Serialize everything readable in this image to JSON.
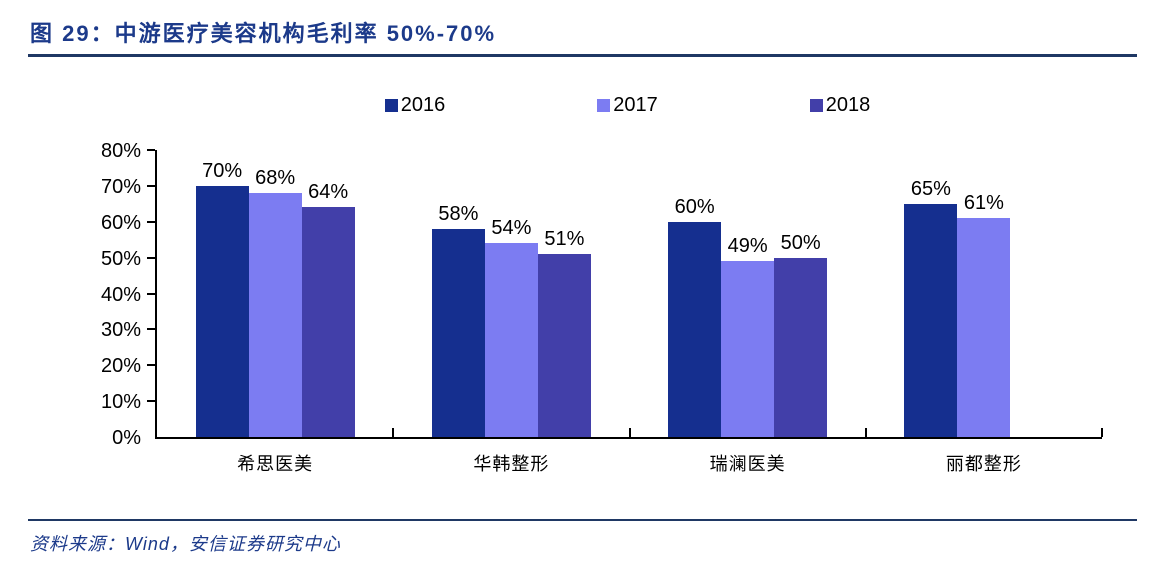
{
  "figure": {
    "title": "图 29：中游医疗美容机构毛利率 50%-70%",
    "source": "资料来源：Wind，安信证券研究中心"
  },
  "colors": {
    "title_navy": "#1C3A8A",
    "rule_navy": "#1F3864",
    "axis_black": "#000000",
    "series_2016": "#152F8F",
    "series_2017": "#7C7CF2",
    "series_2018": "#423FA9"
  },
  "chart_data": {
    "type": "bar",
    "title": "中游医疗美容机构毛利率 50%-70%",
    "categories": [
      "希思医美",
      "华韩整形",
      "瑞澜医美",
      "丽都整形"
    ],
    "series": [
      {
        "name": "2016",
        "color": "#152F8F",
        "values": [
          70,
          58,
          60,
          65
        ]
      },
      {
        "name": "2017",
        "color": "#7C7CF2",
        "values": [
          68,
          54,
          49,
          61
        ]
      },
      {
        "name": "2018",
        "color": "#423FA9",
        "values": [
          64,
          51,
          50,
          null
        ]
      }
    ],
    "value_label_suffix": "%",
    "xlabel": "",
    "ylabel": "",
    "ylim": [
      0,
      80
    ],
    "ytick_labels": [
      "0%",
      "10%",
      "20%",
      "30%",
      "40%",
      "50%",
      "60%",
      "70%",
      "80%"
    ],
    "grid": false,
    "legend_position": "top-center"
  }
}
